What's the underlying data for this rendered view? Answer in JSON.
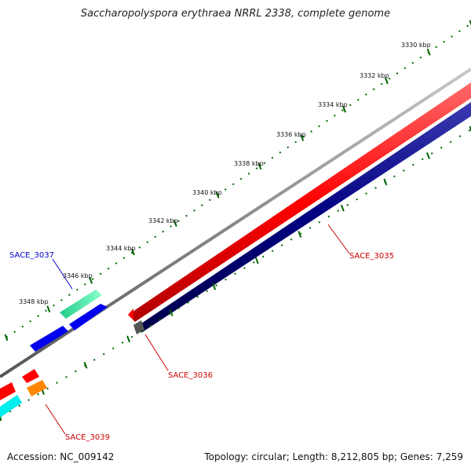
{
  "title": "Saccharopolyspora erythraea NRRL 2338, complete genome",
  "footer": {
    "accession": "Accession: NC_009142",
    "topology": "Topology: circular; Length: 8,212,805 bp; Genes: 7,259"
  },
  "ruler": {
    "ticks": [
      "3330 kbp",
      "3332 kbp",
      "3334 kbp",
      "3336 kbp",
      "3338 kbp",
      "3340 kbp",
      "3342 kbp",
      "3344 kbp",
      "3346 kbp",
      "3348 kbp"
    ]
  },
  "genes": [
    {
      "name": "SACE_3035",
      "color": "#cc0000"
    },
    {
      "name": "SACE_3036",
      "color": "#cc0000"
    },
    {
      "name": "SACE_3037",
      "color": "#0000cc"
    },
    {
      "name": "SACE_3039",
      "color": "#cc0000"
    }
  ],
  "colors": {
    "forward_strand_gene": "#ff0000",
    "reverse_strand_gene": "#000080",
    "backbone": "#808080",
    "ruler": "#006600",
    "rna_gene": "#0000ff",
    "mint_gene": "#33ee99",
    "orange_gene": "#ff8800",
    "cyan_gene": "#00eeee"
  }
}
